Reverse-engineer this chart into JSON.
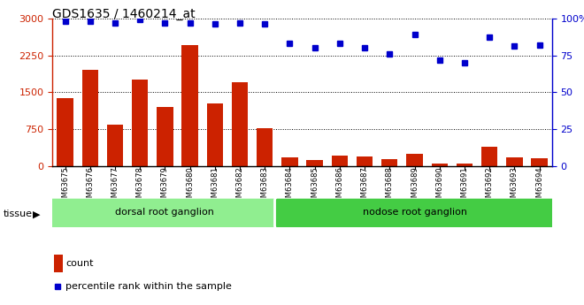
{
  "title": "GDS1635 / 1460214_at",
  "samples": [
    "GSM63675",
    "GSM63676",
    "GSM63677",
    "GSM63678",
    "GSM63679",
    "GSM63680",
    "GSM63681",
    "GSM63682",
    "GSM63683",
    "GSM63684",
    "GSM63685",
    "GSM63686",
    "GSM63687",
    "GSM63688",
    "GSM63689",
    "GSM63690",
    "GSM63691",
    "GSM63692",
    "GSM63693",
    "GSM63694"
  ],
  "counts": [
    1380,
    1950,
    850,
    1750,
    1200,
    2450,
    1280,
    1700,
    780,
    175,
    130,
    220,
    195,
    140,
    260,
    60,
    50,
    400,
    185,
    155
  ],
  "percentiles": [
    98,
    98,
    97,
    99,
    97,
    97,
    96,
    97,
    96,
    83,
    80,
    83,
    80,
    76,
    89,
    72,
    70,
    87,
    81,
    82
  ],
  "tissue_groups": [
    {
      "label": "dorsal root ganglion",
      "start": 0,
      "end": 9,
      "color": "#90ee90"
    },
    {
      "label": "nodose root ganglion",
      "start": 9,
      "end": 20,
      "color": "#44cc44"
    }
  ],
  "bar_color": "#cc2200",
  "dot_color": "#0000cc",
  "left_ylim": [
    0,
    3000
  ],
  "left_yticks": [
    0,
    750,
    1500,
    2250,
    3000
  ],
  "right_ylim": [
    0,
    100
  ],
  "right_yticks": [
    0,
    25,
    50,
    75,
    100
  ],
  "right_yticklabels": [
    "0",
    "25",
    "50",
    "75",
    "100%"
  ],
  "bg_color": "#ffffff",
  "xtick_bg_color": "#c8c8c8",
  "legend_count_color": "#cc2200",
  "legend_dot_color": "#0000cc",
  "tissue_label": "tissue",
  "legend_count_label": "count",
  "legend_dot_label": "percentile rank within the sample"
}
